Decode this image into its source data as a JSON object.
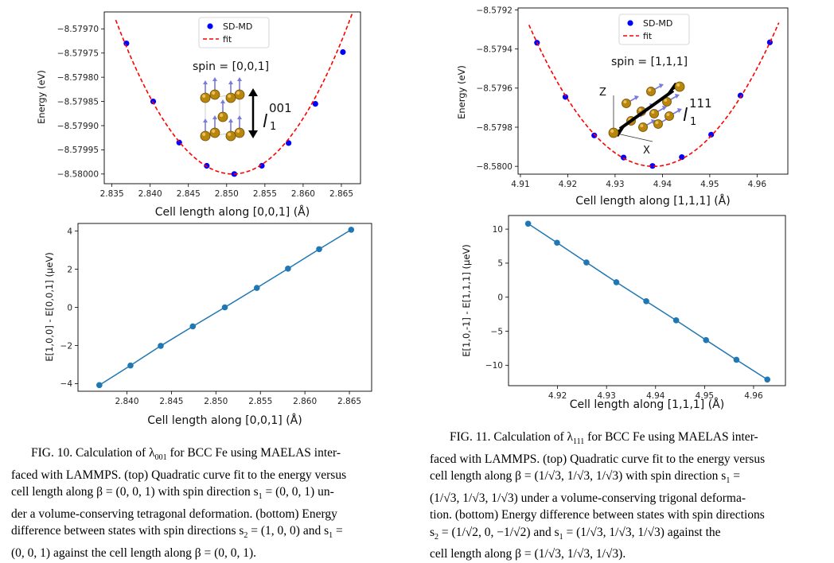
{
  "chart_data": [
    {
      "type": "scatter",
      "title": "",
      "xlabel": "Cell length along [0,0,1] (Å)",
      "ylabel": "Energy (eV)",
      "xlim": [
        2.834,
        2.8675
      ],
      "ylim": [
        -8.58002,
        -8.579665
      ],
      "xticks": [
        2.835,
        2.84,
        2.845,
        2.85,
        2.855,
        2.86,
        2.865
      ],
      "yticks": [
        -8.5797,
        -8.57975,
        -8.5798,
        -8.57985,
        -8.5799,
        -8.57995,
        -8.58
      ],
      "xtick_labels": [
        "2.835",
        "2.840",
        "2.845",
        "2.850",
        "2.855",
        "2.860",
        "2.865"
      ],
      "ytick_labels": [
        "−8.57970",
        "−8.57975",
        "−8.57980",
        "−8.57985",
        "−8.57990",
        "−8.57995",
        "−8.58000"
      ],
      "legend": [
        "SD-MD",
        "fit"
      ],
      "legend_position": "top-center",
      "annotation": "spin = [0,0,1]",
      "inset_label": "l",
      "inset_label_super": "001",
      "inset_label_sub": "1",
      "series": [
        {
          "name": "SD-MD",
          "style": "points",
          "color": "#0000ff",
          "x": [
            2.8369,
            2.8404,
            2.8438,
            2.8474,
            2.851,
            2.8546,
            2.8581,
            2.8616,
            2.8652
          ],
          "y": [
            -8.57973,
            -8.57985,
            -8.579935,
            -8.579983,
            -8.58,
            -8.579983,
            -8.579936,
            -8.579855,
            -8.579748
          ]
        },
        {
          "name": "fit",
          "style": "dashed",
          "color": "#ff0000",
          "quadratic": {
            "x0": 2.8508,
            "y0": -8.58,
            "a": 1.36
          },
          "x_range": [
            2.8355,
            2.8665
          ]
        }
      ]
    },
    {
      "type": "line",
      "title": "",
      "xlabel": "Cell length along [0,0,1] (Å)",
      "ylabel": "E[1,0,0] - E[0,0,1] (μeV)",
      "xlim": [
        2.8345,
        2.8675
      ],
      "ylim": [
        -4.4,
        4.4
      ],
      "xticks": [
        2.84,
        2.845,
        2.85,
        2.855,
        2.86,
        2.865
      ],
      "yticks": [
        -4,
        -2,
        0,
        2,
        4
      ],
      "xtick_labels": [
        "2.840",
        "2.845",
        "2.850",
        "2.855",
        "2.860",
        "2.865"
      ],
      "ytick_labels": [
        "−4",
        "−2",
        "0",
        "2",
        "4"
      ],
      "series": [
        {
          "color": "#1f77b4",
          "x": [
            2.8369,
            2.8404,
            2.8438,
            2.8474,
            2.851,
            2.8546,
            2.8581,
            2.8616,
            2.8652
          ],
          "y": [
            -4.08,
            -3.05,
            -2.02,
            -1.0,
            0.0,
            1.02,
            2.03,
            3.05,
            4.07
          ]
        }
      ]
    },
    {
      "type": "scatter",
      "title": "",
      "xlabel": "Cell length along [1,1,1] (Å)",
      "ylabel": "Energy (eV)",
      "xlim": [
        4.9095,
        4.9665
      ],
      "ylim": [
        -8.58004,
        -8.57919
      ],
      "xticks": [
        4.91,
        4.92,
        4.93,
        4.94,
        4.95,
        4.96
      ],
      "yticks": [
        -8.5792,
        -8.5794,
        -8.5796,
        -8.5798,
        -8.58
      ],
      "xtick_labels": [
        "4.91",
        "4.92",
        "4.93",
        "4.94",
        "4.95",
        "4.96"
      ],
      "ytick_labels": [
        "−8.5792",
        "−8.5794",
        "−8.5796",
        "−8.5798",
        "−8.5800"
      ],
      "legend": [
        "SD-MD",
        "fit"
      ],
      "legend_position": "top-right",
      "annotation": "spin = [1,1,1]",
      "inset_label": "l",
      "inset_label_super": "111",
      "inset_label_sub": "1",
      "axis_labels_3d": [
        "Z",
        "X"
      ],
      "series": [
        {
          "name": "SD-MD",
          "style": "points",
          "color": "#0000ff",
          "x": [
            4.9135,
            4.9195,
            4.9256,
            4.9318,
            4.9379,
            4.9441,
            4.9503,
            4.9565,
            4.9627
          ],
          "y": [
            -8.579368,
            -8.579645,
            -8.579842,
            -8.579955,
            -8.579998,
            -8.579953,
            -8.579838,
            -8.579638,
            -8.579366
          ]
        },
        {
          "name": "fit",
          "style": "dashed",
          "color": "#ff0000",
          "quadratic": {
            "x0": 4.9381,
            "y0": -8.58,
            "a": 1.046
          },
          "x_range": [
            4.9118,
            4.9646
          ]
        }
      ]
    },
    {
      "type": "line",
      "title": "",
      "xlabel": "Cell length along [1,1,1] (Å)",
      "ylabel": "E[1,0,-1] - E[1,1,1] (μeV)",
      "xlim": [
        4.91,
        4.9665
      ],
      "ylim": [
        -13.0,
        12.0
      ],
      "xticks": [
        4.92,
        4.93,
        4.94,
        4.95,
        4.96
      ],
      "yticks": [
        10,
        5,
        0,
        -5,
        -10
      ],
      "xtick_labels": [
        "4.92",
        "4.93",
        "4.94",
        "4.95",
        "4.96"
      ],
      "ytick_labels": [
        "10",
        "5",
        "0",
        "−5",
        "−10"
      ],
      "series": [
        {
          "color": "#1f77b4",
          "x": [
            4.914,
            4.9199,
            4.9259,
            4.932,
            4.9381,
            4.9442,
            4.9503,
            4.9565,
            4.9628
          ],
          "y": [
            10.8,
            8.0,
            5.1,
            2.2,
            -0.6,
            -3.4,
            -6.3,
            -9.2,
            -12.1
          ]
        }
      ]
    }
  ],
  "captions": {
    "left": {
      "lead": "FIG. 10. Calculation of λ",
      "lead_sub": "001",
      "l1": " for BCC Fe using MAELAS inter-",
      "l2": "faced with LAMMPS. (top) Quadratic curve fit to the energy versus",
      "l3": "cell length along β = (0, 0, 1) with spin direction s",
      "l3_sub": "1",
      "l3_end": " = (0, 0, 1) un-",
      "l4": "der a volume-conserving tetragonal deformation. (bottom) Energy",
      "l5": "difference between states with spin directions s",
      "l5_sub": "2",
      "l5_mid": " = (1, 0, 0) and s",
      "l5_sub2": "1",
      "l5_end": " =",
      "l6": "(0, 0, 1) against the cell length along β = (0, 0, 1)."
    },
    "right": {
      "lead": "FIG. 11. Calculation of λ",
      "lead_sub": "111",
      "l1": " for BCC Fe using MAELAS inter-",
      "l2": "faced with LAMMPS. (top) Quadratic curve fit to the energy versus",
      "l3": "cell length along β = (1/√3, 1/√3, 1/√3) with spin direction s",
      "l3_sub": "1",
      "l3_end": " =",
      "l4": "(1/√3, 1/√3, 1/√3) under a volume-conserving trigonal deforma-",
      "l5": "tion. (bottom) Energy difference between states with spin directions",
      "l6": "s",
      "l6_sub": "2",
      "l6_mid": " = (1/√2, 0, −1/√2) and s",
      "l6_sub2": "1",
      "l6_end": " = (1/√3, 1/√3, 1/√3) against the",
      "l7": "cell length along β = (1/√3, 1/√3, 1/√3)."
    }
  }
}
